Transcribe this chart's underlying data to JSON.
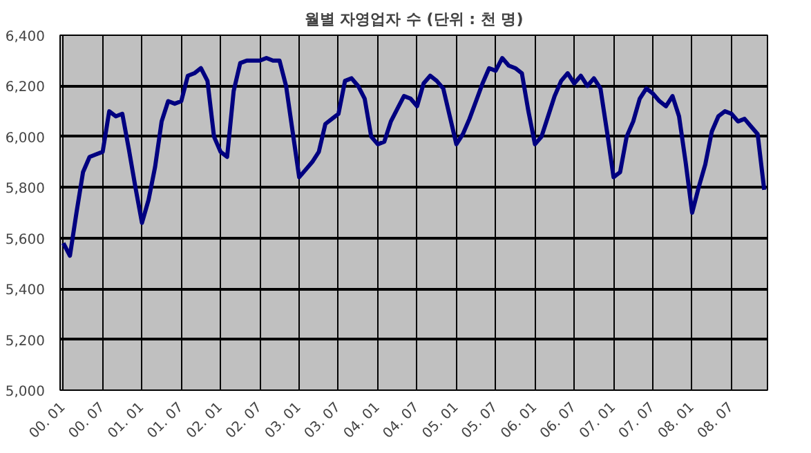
{
  "chart_data": {
    "type": "line",
    "title": "월별 자영업자 수 (단위 : 천 명)",
    "categories": [
      "00. 01",
      null,
      null,
      null,
      null,
      null,
      "00. 07",
      null,
      null,
      null,
      null,
      null,
      "01. 01",
      null,
      null,
      null,
      null,
      null,
      "01. 07",
      null,
      null,
      null,
      null,
      null,
      "02. 01",
      null,
      null,
      null,
      null,
      null,
      "02. 07",
      null,
      null,
      null,
      null,
      null,
      "03. 01",
      null,
      null,
      null,
      null,
      null,
      "03. 07",
      null,
      null,
      null,
      null,
      null,
      "04. 01",
      null,
      null,
      null,
      null,
      null,
      "04. 07",
      null,
      null,
      null,
      null,
      null,
      "05. 01",
      null,
      null,
      null,
      null,
      null,
      "05. 07",
      null,
      null,
      null,
      null,
      null,
      "06. 01",
      null,
      null,
      null,
      null,
      null,
      "06. 07",
      null,
      null,
      null,
      null,
      null,
      "07. 01",
      null,
      null,
      null,
      null,
      null,
      "07. 07",
      null,
      null,
      null,
      null,
      null,
      "08. 01",
      null,
      null,
      null,
      null,
      null,
      "08. 07",
      null,
      null,
      null,
      null,
      null
    ],
    "series": [
      {
        "color": "#000080",
        "values": [
          5580,
          5530,
          5700,
          5860,
          5920,
          5930,
          5940,
          6100,
          6080,
          6090,
          5950,
          5800,
          5660,
          5750,
          5880,
          6060,
          6140,
          6130,
          6140,
          6240,
          6250,
          6270,
          6220,
          6000,
          5940,
          5920,
          6180,
          6290,
          6300,
          6300,
          6300,
          6310,
          6300,
          6300,
          6200,
          6020,
          5840,
          5870,
          5900,
          5940,
          6050,
          6070,
          6090,
          6220,
          6230,
          6200,
          6150,
          6000,
          5970,
          5980,
          6060,
          6110,
          6160,
          6150,
          6120,
          6210,
          6240,
          6220,
          6190,
          6080,
          5970,
          6010,
          6070,
          6140,
          6210,
          6270,
          6260,
          6310,
          6280,
          6270,
          6250,
          6100,
          5970,
          6000,
          6080,
          6160,
          6220,
          6250,
          6210,
          6240,
          6200,
          6230,
          6190,
          6020,
          5840,
          5860,
          6000,
          6060,
          6150,
          6190,
          6170,
          6140,
          6120,
          6160,
          6080,
          5900,
          5700,
          5800,
          5890,
          6020,
          6080,
          6100,
          6090,
          6060,
          6070,
          6040,
          6010,
          5790
        ]
      }
    ],
    "ylim": [
      5000,
      6400
    ],
    "yticks": [
      {
        "value": 5000,
        "label": "5,000"
      },
      {
        "value": 5200,
        "label": "5,200"
      },
      {
        "value": 5400,
        "label": "5,400"
      },
      {
        "value": 5600,
        "label": "5,600"
      },
      {
        "value": 5800,
        "label": "5,800"
      },
      {
        "value": 6000,
        "label": "6,000"
      },
      {
        "value": 6200,
        "label": "6,200"
      },
      {
        "value": 6400,
        "label": "6,400"
      }
    ],
    "grid": true,
    "line_style": "solid",
    "marker": "none"
  }
}
